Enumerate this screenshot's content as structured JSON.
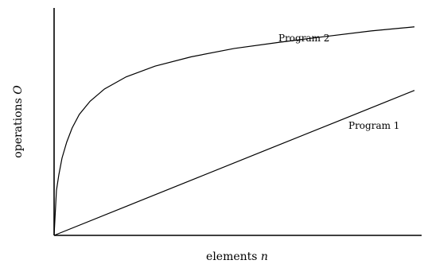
{
  "chart_data": {
    "type": "line",
    "title": "",
    "xlabel": {
      "prefix": "elements",
      "variable": "n"
    },
    "ylabel": {
      "prefix": "operations",
      "variable": "O"
    },
    "xlim": [
      0,
      1
    ],
    "ylim": [
      0,
      1
    ],
    "grid": false,
    "legend": "none",
    "series": [
      {
        "name": "Program 1",
        "x": [
          0,
          0.2,
          0.4,
          0.6,
          0.8,
          1.0
        ],
        "y": [
          0,
          0.1275,
          0.255,
          0.3825,
          0.51,
          0.6375
        ]
      },
      {
        "name": "Program 2",
        "x": [
          0,
          0.0065,
          0.013,
          0.022,
          0.035,
          0.05,
          0.07,
          0.1,
          0.14,
          0.2,
          0.28,
          0.38,
          0.5,
          0.62,
          0.75,
          0.88,
          1.0
        ],
        "y": [
          0,
          0.197,
          0.265,
          0.34,
          0.41,
          0.472,
          0.532,
          0.59,
          0.644,
          0.697,
          0.744,
          0.785,
          0.822,
          0.848,
          0.874,
          0.899,
          0.917
        ]
      }
    ],
    "colors": {
      "axis": "#000000",
      "series": "#000000"
    }
  }
}
